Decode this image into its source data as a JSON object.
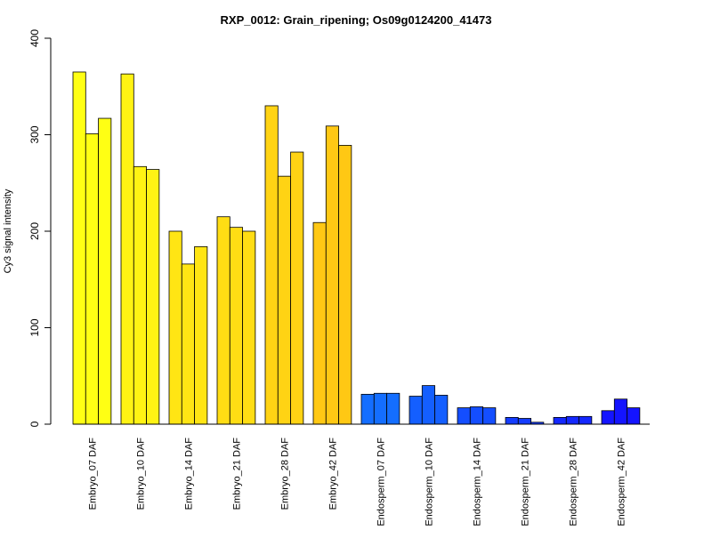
{
  "chart_data": {
    "type": "bar",
    "title": "RXP_0012: Grain_ripening; Os09g0124200_41473",
    "xlabel": "",
    "ylabel": "Cy3 signal intensity",
    "ylim": [
      0,
      400
    ],
    "yticks": [
      0,
      100,
      200,
      300,
      400
    ],
    "grid": false,
    "legend": "none",
    "bars_per_group": 3,
    "categories": [
      "Embryo_07 DAF",
      "Embryo_10 DAF",
      "Embryo_14 DAF",
      "Embryo_21 DAF",
      "Embryo_28 DAF",
      "Embryo_42 DAF",
      "Endosperm_07 DAF",
      "Endosperm_10 DAF",
      "Endosperm_14 DAF",
      "Endosperm_21 DAF",
      "Endosperm_28 DAF",
      "Endosperm_42 DAF"
    ],
    "group_colors": [
      "#FFFF14",
      "#FFF314",
      "#FFE514",
      "#FFDD14",
      "#FFD314",
      "#FFC814",
      "#146EFF",
      "#145FFF",
      "#144EFF",
      "#143CFF",
      "#1428FF",
      "#1414FF"
    ],
    "values": [
      [
        365,
        301,
        317
      ],
      [
        363,
        267,
        264
      ],
      [
        200,
        166,
        184
      ],
      [
        215,
        204,
        200
      ],
      [
        330,
        257,
        282
      ],
      [
        209,
        309,
        289
      ],
      [
        31,
        32,
        32
      ],
      [
        29,
        40,
        30
      ],
      [
        17,
        18,
        17
      ],
      [
        7,
        6,
        2
      ],
      [
        7,
        8,
        8
      ],
      [
        14,
        26,
        17
      ]
    ]
  }
}
